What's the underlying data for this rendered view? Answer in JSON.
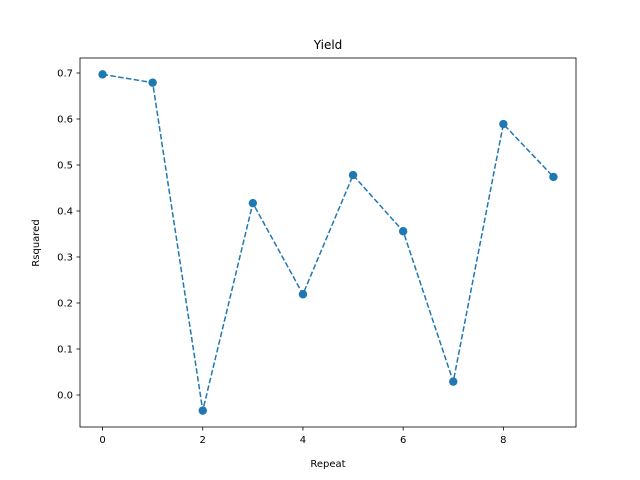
{
  "chart_data": {
    "type": "line",
    "title": "Yield",
    "xlabel": "Repeat",
    "ylabel": "Rsquared",
    "xlim": [
      -0.45,
      9.45
    ],
    "ylim": [
      -0.0696,
      0.7326
    ],
    "x_ticks": [
      0,
      2,
      4,
      6,
      8
    ],
    "y_ticks": [
      0.0,
      0.1,
      0.2,
      0.3,
      0.4,
      0.5,
      0.6,
      0.7
    ],
    "x_tick_labels": [
      "0",
      "2",
      "4",
      "6",
      "8"
    ],
    "y_tick_labels": [
      "0.0",
      "0.1",
      "0.2",
      "0.3",
      "0.4",
      "0.5",
      "0.6",
      "0.7"
    ],
    "grid": false,
    "legend": "none",
    "line_style": "dashed",
    "marker": "circle",
    "series": [
      {
        "color": "#1f77b4",
        "x": [
          0,
          1,
          2,
          3,
          4,
          5,
          6,
          7,
          8,
          9
        ],
        "y": [
          0.697,
          0.679,
          -0.034,
          0.417,
          0.219,
          0.478,
          0.356,
          0.029,
          0.589,
          0.474
        ]
      }
    ]
  }
}
